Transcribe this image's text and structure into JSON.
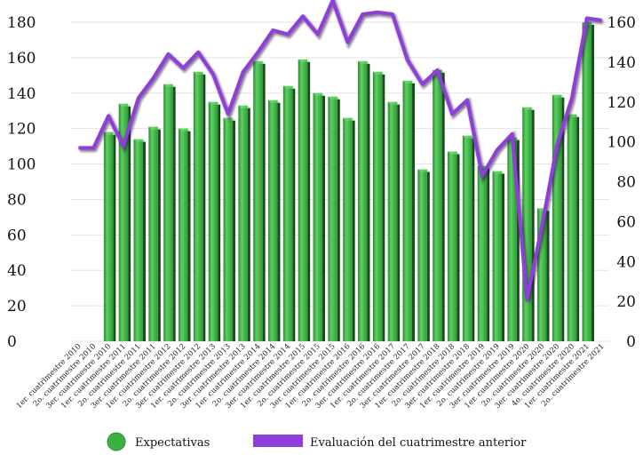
{
  "chart_data": {
    "type": "bar",
    "categories": [
      "1er. cuatrimestre 2010",
      "2o. cuatrimestre 2010",
      "3er. cuatrimestre 2010",
      "1er. cuatrimestre 2011",
      "2o. cuatrimestre 2011",
      "3er. cuatrimestre 2011",
      "1er. cuatrimestre 2012",
      "2o. cuatrimestre 2012",
      "3er. cuatrimestre 2012",
      "1er. cuatrimestre 2013",
      "2o. cuatrimestre 2013",
      "3er. cuatrimestre 2013",
      "1er. cuatrimestre 2014",
      "2o. cuatrimestre 2014",
      "3er. cuatrimestre 2014",
      "1er. cuatrimestre 2015",
      "2o. cuatrimestre 2015",
      "3er. cuatrimestre 2015",
      "1er. cuatrimestre 2016",
      "2o. cuatrimestre 2016",
      "3er. cuatrimestre 2016",
      "1er. cuatrimestre 2017",
      "2o. cuatrimestre 2017",
      "3er. cuatrimestre 2017",
      "1er. cuatrimestre 2018",
      "2o. cuatrimestre 2018",
      "3er. cuatrimestre 2018",
      "1er. cuatrimestre 2019",
      "2o. cuatrimestre 2019",
      "3er. cuatrimestre 2019",
      "1er. cuatrimestre 2020",
      "2o. cuatrimestre 2020",
      "3er. cuatrimestre 2020",
      "4o. cuatrimestre 2020",
      "1er. cuatrimestre 2021",
      "2o. cuatrimestre 2021"
    ],
    "series": [
      {
        "name": "Expectativas",
        "type": "bar",
        "axis": "left",
        "color": "#3cb043",
        "values": [
          null,
          null,
          118,
          134,
          114,
          121,
          145,
          120,
          152,
          135,
          126,
          133,
          158,
          136,
          144,
          159,
          140,
          138,
          126,
          158,
          152,
          135,
          147,
          97,
          153,
          107,
          116,
          99,
          96,
          115,
          132,
          75,
          139,
          128,
          180,
          null
        ]
      },
      {
        "name": "Evaluación del cuatrimestre anterior",
        "type": "line",
        "axis": "right",
        "color": "#8e3fd9",
        "values": [
          97,
          97,
          113,
          98,
          122,
          132,
          144,
          137,
          145,
          134,
          114,
          135,
          145,
          156,
          154,
          163,
          154,
          171,
          150,
          164,
          165,
          164,
          141,
          129,
          136,
          114,
          121,
          83,
          96,
          104,
          21,
          58,
          98,
          122,
          162,
          161
        ]
      }
    ],
    "y_left": {
      "min": 0,
      "max": 180,
      "ticks": [
        0,
        20,
        40,
        60,
        80,
        100,
        120,
        140,
        160,
        180
      ]
    },
    "y_right": {
      "min": 0,
      "max": 160,
      "ticks": [
        0,
        20,
        40,
        60,
        80,
        100,
        120,
        140,
        160
      ]
    },
    "title": "",
    "xlabel": "",
    "ylabel": "",
    "grid": "horizontal",
    "legend_position": "bottom"
  }
}
